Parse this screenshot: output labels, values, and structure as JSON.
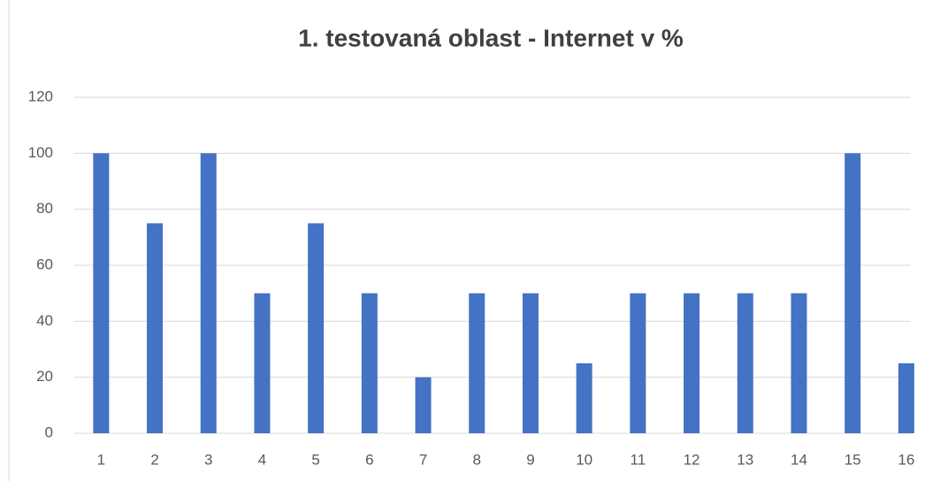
{
  "chart_data": {
    "type": "bar",
    "title": "1. testovaná oblast - Internet v %",
    "categories": [
      "1",
      "2",
      "3",
      "4",
      "5",
      "6",
      "7",
      "8",
      "9",
      "10",
      "11",
      "12",
      "13",
      "14",
      "15",
      "16"
    ],
    "values": [
      100,
      75,
      100,
      50,
      75,
      50,
      20,
      50,
      50,
      25,
      50,
      50,
      50,
      50,
      100,
      25
    ],
    "color": "#4472c4",
    "ylim": [
      0,
      120
    ],
    "yticks": [
      0,
      20,
      40,
      60,
      80,
      100,
      120
    ],
    "grid": true
  }
}
